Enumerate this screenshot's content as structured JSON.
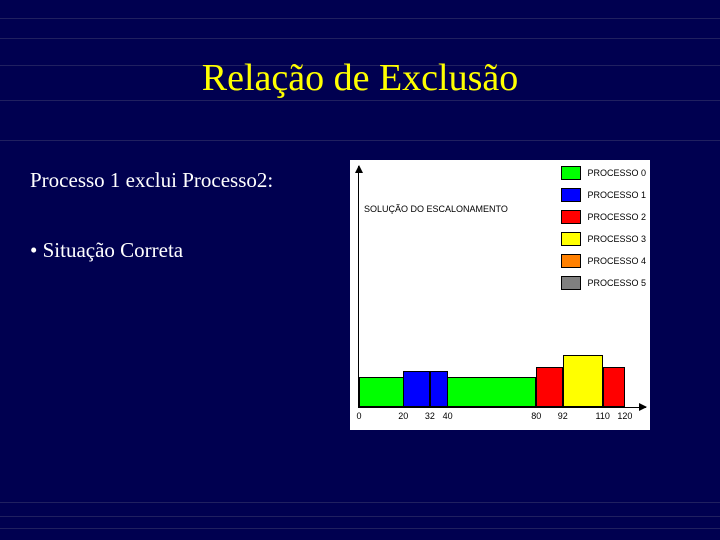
{
  "background_color": "#000050",
  "title": {
    "text": "Relação de Exclusão",
    "color": "#ffff00",
    "fontsize": 38
  },
  "text_lines": {
    "line1": "Processo 1 exclui Processo2:",
    "line2": "• Situação Correta"
  },
  "chart": {
    "type": "bar",
    "title": "SOLUÇÃO DO ESCALONAMENTO",
    "background_color": "#ffffff",
    "xlim": [
      0,
      130
    ],
    "ticks": [
      0,
      20,
      32,
      40,
      80,
      92,
      110,
      120
    ],
    "bars": [
      {
        "start": 0,
        "end": 80,
        "height": 30,
        "color": "#00ff00"
      },
      {
        "start": 20,
        "end": 32,
        "height": 36,
        "color": "#0000ff"
      },
      {
        "start": 32,
        "end": 40,
        "height": 36,
        "color": "#0000ff"
      },
      {
        "start": 80,
        "end": 92,
        "height": 40,
        "color": "#ff0000"
      },
      {
        "start": 92,
        "end": 110,
        "height": 52,
        "color": "#ffff00"
      },
      {
        "start": 110,
        "end": 120,
        "height": 40,
        "color": "#ff0000"
      }
    ],
    "legend": [
      {
        "label": "PROCESSO 0",
        "color": "#00ff00"
      },
      {
        "label": "PROCESSO 1",
        "color": "#0000ff"
      },
      {
        "label": "PROCESSO 2",
        "color": "#ff0000"
      },
      {
        "label": "PROCESSO 3",
        "color": "#ffff00"
      },
      {
        "label": "PROCESSO 4",
        "color": "#ff8000"
      },
      {
        "label": "PROCESSO 5",
        "color": "#808080"
      }
    ]
  },
  "stripes_y": [
    18,
    38,
    65,
    100,
    140,
    502,
    516,
    528
  ]
}
